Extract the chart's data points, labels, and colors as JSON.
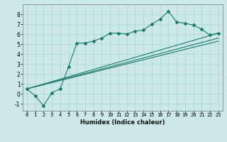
{
  "xlabel": "Humidex (Indice chaleur)",
  "bg_color": "#cce8e8",
  "grid_color": "#aad4d4",
  "line_color": "#1a7a6a",
  "xlim": [
    -0.5,
    23.5
  ],
  "ylim": [
    -1.7,
    9.0
  ],
  "x_ticks": [
    0,
    1,
    2,
    3,
    4,
    5,
    6,
    7,
    8,
    9,
    10,
    11,
    12,
    13,
    14,
    15,
    16,
    17,
    18,
    19,
    20,
    21,
    22,
    23
  ],
  "y_ticks": [
    -1,
    0,
    1,
    2,
    3,
    4,
    5,
    6,
    7,
    8
  ],
  "main_x": [
    0,
    1,
    2,
    3,
    4,
    5,
    6,
    7,
    8,
    9,
    10,
    11,
    12,
    13,
    14,
    15,
    16,
    17,
    18,
    19,
    20,
    21,
    22,
    23
  ],
  "main_y": [
    0.5,
    -0.2,
    -1.2,
    0.1,
    0.5,
    2.7,
    5.1,
    5.1,
    5.3,
    5.6,
    6.1,
    6.1,
    6.0,
    6.3,
    6.4,
    7.0,
    7.5,
    8.3,
    7.2,
    7.1,
    6.9,
    6.5,
    5.9,
    6.1
  ],
  "line1_x": [
    0,
    23
  ],
  "line1_y": [
    0.5,
    6.1
  ],
  "line2_x": [
    0,
    23
  ],
  "line2_y": [
    0.5,
    5.6
  ],
  "line3_x": [
    0,
    23
  ],
  "line3_y": [
    0.5,
    5.3
  ],
  "tick_fontsize": 5,
  "xlabel_fontsize": 6,
  "marker_size": 2.0,
  "linewidth": 0.8
}
